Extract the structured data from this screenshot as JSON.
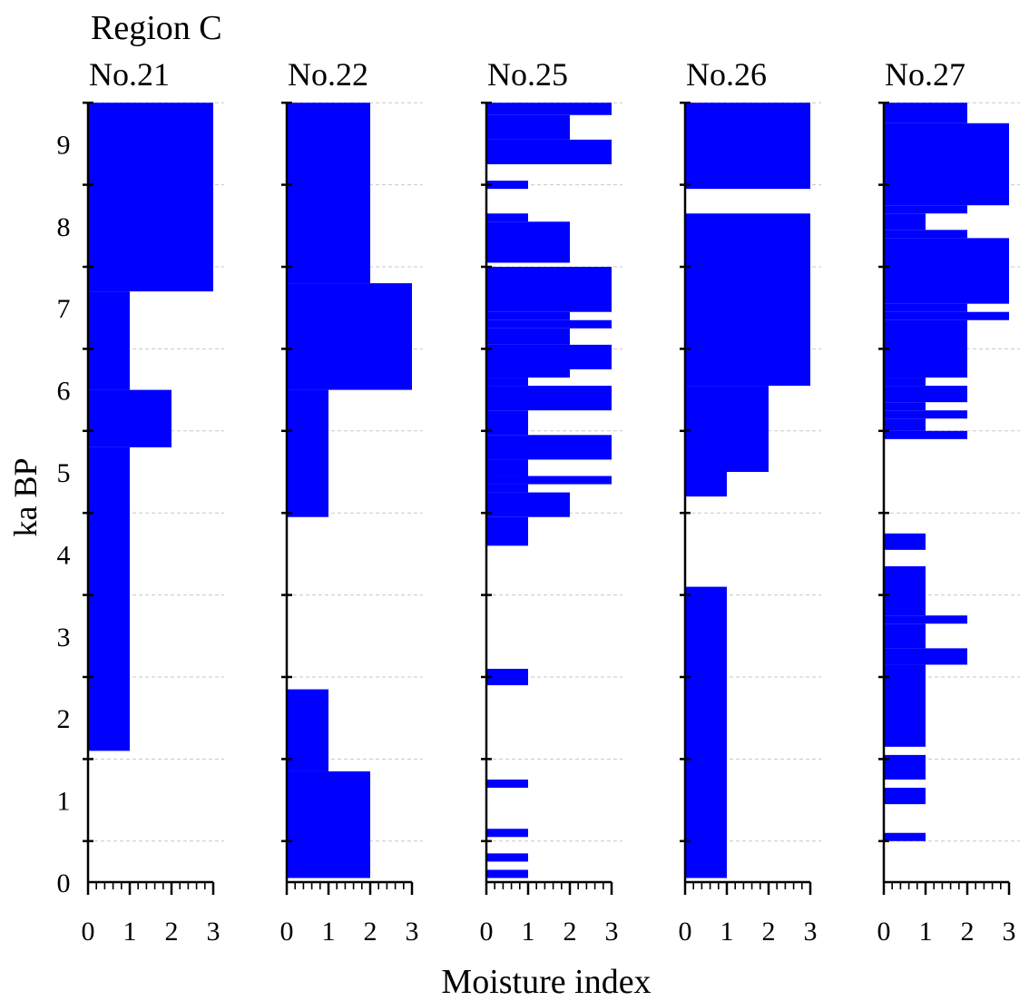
{
  "region_title": "Region C",
  "y_axis_label": "ka BP",
  "x_axis_label": "Moisture index",
  "chart_data": {
    "type": "bar",
    "orientation": "horizontal",
    "title": "Region C",
    "ylabel": "ka BP",
    "xlabel": "Moisture index",
    "ylim": [
      0,
      9.5
    ],
    "xlim": [
      0,
      3
    ],
    "y_ticks": [
      "0",
      "1",
      "2",
      "3",
      "4",
      "5",
      "6",
      "7",
      "8",
      "9"
    ],
    "x_ticks": [
      "0",
      "1",
      "2",
      "3"
    ],
    "grid": "dashed horizontal lines at half-ka intervals",
    "bar_color": "#0000ff",
    "panels": [
      {
        "name": "No.21",
        "segments": [
          {
            "y0": 1.6,
            "y1": 5.3,
            "value": 1
          },
          {
            "y0": 5.3,
            "y1": 6.0,
            "value": 2
          },
          {
            "y0": 6.0,
            "y1": 7.2,
            "value": 1
          },
          {
            "y0": 7.2,
            "y1": 9.5,
            "value": 3
          }
        ]
      },
      {
        "name": "No.22",
        "segments": [
          {
            "y0": 0.05,
            "y1": 1.35,
            "value": 2
          },
          {
            "y0": 1.35,
            "y1": 2.35,
            "value": 1
          },
          {
            "y0": 4.45,
            "y1": 6.0,
            "value": 1
          },
          {
            "y0": 6.0,
            "y1": 7.3,
            "value": 3
          },
          {
            "y0": 7.3,
            "y1": 9.5,
            "value": 2
          }
        ]
      },
      {
        "name": "No.25",
        "segments": [
          {
            "y0": 0.05,
            "y1": 0.15,
            "value": 1
          },
          {
            "y0": 0.25,
            "y1": 0.35,
            "value": 1
          },
          {
            "y0": 0.55,
            "y1": 0.65,
            "value": 1
          },
          {
            "y0": 1.15,
            "y1": 1.25,
            "value": 1
          },
          {
            "y0": 2.4,
            "y1": 2.6,
            "value": 1
          },
          {
            "y0": 4.1,
            "y1": 4.45,
            "value": 1
          },
          {
            "y0": 4.45,
            "y1": 4.75,
            "value": 2
          },
          {
            "y0": 4.75,
            "y1": 4.85,
            "value": 1
          },
          {
            "y0": 4.85,
            "y1": 4.95,
            "value": 3
          },
          {
            "y0": 4.95,
            "y1": 5.15,
            "value": 1
          },
          {
            "y0": 5.15,
            "y1": 5.45,
            "value": 3
          },
          {
            "y0": 5.45,
            "y1": 5.75,
            "value": 1
          },
          {
            "y0": 5.75,
            "y1": 6.05,
            "value": 3
          },
          {
            "y0": 6.05,
            "y1": 6.15,
            "value": 1
          },
          {
            "y0": 6.15,
            "y1": 6.25,
            "value": 2
          },
          {
            "y0": 6.25,
            "y1": 6.55,
            "value": 3
          },
          {
            "y0": 6.55,
            "y1": 6.75,
            "value": 2
          },
          {
            "y0": 6.75,
            "y1": 6.85,
            "value": 3
          },
          {
            "y0": 6.85,
            "y1": 6.95,
            "value": 2
          },
          {
            "y0": 6.95,
            "y1": 7.5,
            "value": 3
          },
          {
            "y0": 7.5,
            "y1": 7.55,
            "value": 0
          },
          {
            "y0": 7.55,
            "y1": 8.05,
            "value": 2
          },
          {
            "y0": 8.05,
            "y1": 8.15,
            "value": 1
          },
          {
            "y0": 8.45,
            "y1": 8.55,
            "value": 1
          },
          {
            "y0": 8.75,
            "y1": 9.05,
            "value": 3
          },
          {
            "y0": 9.05,
            "y1": 9.35,
            "value": 2
          },
          {
            "y0": 9.35,
            "y1": 9.5,
            "value": 3
          }
        ]
      },
      {
        "name": "No.26",
        "segments": [
          {
            "y0": 0.05,
            "y1": 3.6,
            "value": 1
          },
          {
            "y0": 4.7,
            "y1": 5.0,
            "value": 1
          },
          {
            "y0": 5.0,
            "y1": 6.05,
            "value": 2
          },
          {
            "y0": 6.05,
            "y1": 8.15,
            "value": 3
          },
          {
            "y0": 8.45,
            "y1": 9.5,
            "value": 3
          }
        ]
      },
      {
        "name": "No.27",
        "segments": [
          {
            "y0": 0.5,
            "y1": 0.6,
            "value": 1
          },
          {
            "y0": 0.95,
            "y1": 1.15,
            "value": 1
          },
          {
            "y0": 1.25,
            "y1": 1.55,
            "value": 1
          },
          {
            "y0": 1.65,
            "y1": 2.65,
            "value": 1
          },
          {
            "y0": 2.65,
            "y1": 2.85,
            "value": 2
          },
          {
            "y0": 2.85,
            "y1": 3.15,
            "value": 1
          },
          {
            "y0": 3.15,
            "y1": 3.25,
            "value": 2
          },
          {
            "y0": 3.25,
            "y1": 3.85,
            "value": 1
          },
          {
            "y0": 4.05,
            "y1": 4.25,
            "value": 1
          },
          {
            "y0": 5.4,
            "y1": 5.5,
            "value": 2
          },
          {
            "y0": 5.5,
            "y1": 5.65,
            "value": 1
          },
          {
            "y0": 5.65,
            "y1": 5.75,
            "value": 2
          },
          {
            "y0": 5.75,
            "y1": 5.85,
            "value": 1
          },
          {
            "y0": 5.85,
            "y1": 6.05,
            "value": 2
          },
          {
            "y0": 6.05,
            "y1": 6.15,
            "value": 1
          },
          {
            "y0": 6.15,
            "y1": 6.85,
            "value": 2
          },
          {
            "y0": 6.85,
            "y1": 6.95,
            "value": 3
          },
          {
            "y0": 6.95,
            "y1": 7.05,
            "value": 2
          },
          {
            "y0": 7.05,
            "y1": 7.85,
            "value": 3
          },
          {
            "y0": 7.85,
            "y1": 7.95,
            "value": 2
          },
          {
            "y0": 7.95,
            "y1": 8.15,
            "value": 1
          },
          {
            "y0": 8.15,
            "y1": 8.25,
            "value": 2
          },
          {
            "y0": 8.25,
            "y1": 9.25,
            "value": 3
          },
          {
            "y0": 9.25,
            "y1": 9.5,
            "value": 2
          }
        ]
      }
    ]
  }
}
